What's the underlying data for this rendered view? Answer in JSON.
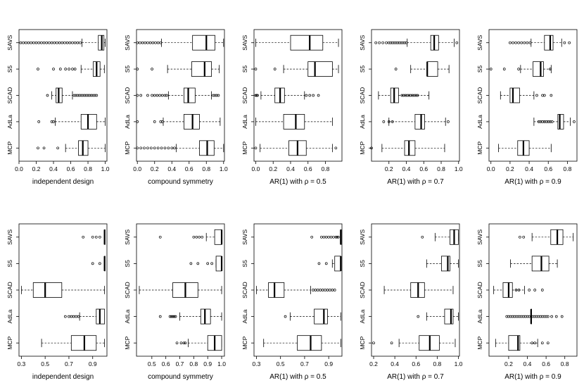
{
  "figure": {
    "description": "Boxplots of five variable-selection methods under ten correlation settings"
  },
  "chart_data": [
    {
      "type": "boxplot",
      "xlabel": "independent design",
      "xlim": [
        0,
        1.02
      ],
      "ticks": [
        0.0,
        0.2,
        0.4,
        0.6,
        0.8,
        1.0
      ],
      "tick_labels": [
        "0.0",
        "0.2",
        "0.4",
        "0.6",
        "0.8",
        "1.0"
      ],
      "categories": [
        "SAVS",
        "S5",
        "SCAD",
        "AdLa",
        "MCP"
      ],
      "boxes": [
        {
          "q1": 0.92,
          "median": 0.96,
          "q3": 0.985,
          "wlo": 0.73,
          "whi": 1.0,
          "out": [
            0.02,
            0.05,
            0.08,
            0.11,
            0.14,
            0.17,
            0.2,
            0.23,
            0.26,
            0.29,
            0.32,
            0.35,
            0.38,
            0.41,
            0.44,
            0.47,
            0.5,
            0.53,
            0.56,
            0.59,
            0.62,
            0.65,
            0.68,
            0.71
          ]
        },
        {
          "q1": 0.86,
          "median": 0.9,
          "q3": 0.94,
          "wlo": 0.72,
          "whi": 0.99,
          "out": [
            0.22,
            0.4,
            0.48,
            0.54,
            0.58,
            0.62,
            0.65
          ]
        },
        {
          "q1": 0.43,
          "median": 0.46,
          "q3": 0.5,
          "wlo": 0.38,
          "whi": 0.62,
          "out": [
            0.33,
            0.64,
            0.66,
            0.68,
            0.7,
            0.72,
            0.74,
            0.76,
            0.78,
            0.8,
            0.82,
            0.84,
            0.86,
            0.88,
            0.9
          ]
        },
        {
          "q1": 0.72,
          "median": 0.8,
          "q3": 0.9,
          "wlo": 0.42,
          "whi": 1.0,
          "out": [
            0.23,
            0.38,
            0.4
          ]
        },
        {
          "q1": 0.69,
          "median": 0.74,
          "q3": 0.8,
          "wlo": 0.54,
          "whi": 1.0,
          "out": [
            0.22,
            0.29,
            0.45
          ]
        }
      ]
    },
    {
      "type": "boxplot",
      "xlabel": "compound symmetry",
      "xlim": [
        -0.01,
        1.01
      ],
      "ticks": [
        0.0,
        0.2,
        0.4,
        0.6,
        0.8,
        1.0
      ],
      "tick_labels": [
        "0.0",
        "0.2",
        "0.4",
        "0.6",
        "0.8",
        "1.0"
      ],
      "categories": [
        "SAVS",
        "S5",
        "SCAD",
        "AdLa",
        "MCP"
      ],
      "boxes": [
        {
          "q1": 0.64,
          "median": 0.8,
          "q3": 0.9,
          "wlo": 0.28,
          "whi": 1.0,
          "out": [
            0.0,
            0.03,
            0.06,
            0.09,
            0.12,
            0.15,
            0.18,
            0.21,
            0.24,
            0.27
          ]
        },
        {
          "q1": 0.63,
          "median": 0.78,
          "q3": 0.86,
          "wlo": 0.35,
          "whi": 0.95,
          "out": [
            0.0,
            0.17
          ]
        },
        {
          "q1": 0.54,
          "median": 0.59,
          "q3": 0.67,
          "wlo": 0.36,
          "whi": 0.86,
          "out": [
            0.0,
            0.04,
            0.12,
            0.17,
            0.2,
            0.23,
            0.26,
            0.29,
            0.32,
            0.34,
            0.88,
            0.9,
            0.92,
            0.94
          ]
        },
        {
          "q1": 0.54,
          "median": 0.64,
          "q3": 0.72,
          "wlo": 0.3,
          "whi": 0.96,
          "out": [
            0.0,
            0.2,
            0.27,
            0.29
          ]
        },
        {
          "q1": 0.72,
          "median": 0.81,
          "q3": 0.89,
          "wlo": 0.45,
          "whi": 1.0,
          "out": [
            0.0,
            0.04,
            0.08,
            0.12,
            0.16,
            0.2,
            0.24,
            0.28,
            0.32,
            0.36,
            0.4,
            0.43
          ]
        }
      ]
    },
    {
      "type": "boxplot",
      "xlabel": "AR(1) with ρ = 0.5",
      "xlim": [
        -0.02,
        0.99
      ],
      "ticks": [
        0.0,
        0.2,
        0.4,
        0.6,
        0.8
      ],
      "tick_labels": [
        "0.0",
        "0.2",
        "0.4",
        "0.6",
        "0.8"
      ],
      "categories": [
        "SAVS",
        "S5",
        "SCAD",
        "AdLa",
        "MCP"
      ],
      "boxes": [
        {
          "q1": 0.4,
          "median": 0.62,
          "q3": 0.77,
          "wlo": 0.0,
          "whi": 0.95,
          "out": []
        },
        {
          "q1": 0.6,
          "median": 0.68,
          "q3": 0.88,
          "wlo": 0.32,
          "whi": 0.95,
          "out": [
            0.0,
            0.22
          ]
        },
        {
          "q1": 0.22,
          "median": 0.28,
          "q3": 0.33,
          "wlo": 0.06,
          "whi": 0.56,
          "out": [
            0.0,
            0.01,
            0.02,
            0.58,
            0.62,
            0.66,
            0.72
          ]
        },
        {
          "q1": 0.32,
          "median": 0.46,
          "q3": 0.56,
          "wlo": 0.0,
          "whi": 0.88,
          "out": []
        },
        {
          "q1": 0.38,
          "median": 0.48,
          "q3": 0.58,
          "wlo": 0.05,
          "whi": 0.88,
          "out": [
            0.0,
            0.92
          ]
        }
      ]
    },
    {
      "type": "boxplot",
      "xlabel": "AR(1) with ρ = 0.7",
      "xlim": [
        0.0,
        1.01
      ],
      "ticks": [
        0.2,
        0.4,
        0.6,
        0.8,
        1.0
      ],
      "tick_labels": [
        "0.2",
        "0.4",
        "0.6",
        "0.8",
        "1.0"
      ],
      "categories": [
        "SAVS",
        "S5",
        "SCAD",
        "AdLa",
        "MCP"
      ],
      "boxes": [
        {
          "q1": 0.68,
          "median": 0.72,
          "q3": 0.77,
          "wlo": 0.41,
          "whi": 0.95,
          "out": [
            0.05,
            0.09,
            0.13,
            0.17,
            0.2,
            0.22,
            0.24,
            0.26,
            0.28,
            0.3,
            0.32,
            0.34,
            0.36,
            0.38,
            0.4,
            0.98
          ]
        },
        {
          "q1": 0.64,
          "median": 0.64,
          "q3": 0.76,
          "wlo": 0.45,
          "whi": 0.89,
          "out": [
            0.28
          ]
        },
        {
          "q1": 0.22,
          "median": 0.26,
          "q3": 0.31,
          "wlo": 0.08,
          "whi": 0.66,
          "out": [
            0.35,
            0.37,
            0.39,
            0.41,
            0.43,
            0.45,
            0.47,
            0.49,
            0.51,
            0.53
          ]
        },
        {
          "q1": 0.5,
          "median": 0.57,
          "q3": 0.61,
          "wlo": 0.2,
          "whi": 0.85,
          "out": [
            0.14,
            0.2,
            0.24,
            0.88
          ]
        },
        {
          "q1": 0.38,
          "median": 0.43,
          "q3": 0.5,
          "wlo": 0.12,
          "whi": 0.84,
          "out": [
            0.0
          ]
        }
      ]
    },
    {
      "type": "boxplot",
      "xlabel": "AR(1) with ρ = 0.9",
      "xlim": [
        -0.02,
        0.9
      ],
      "ticks": [
        0.0,
        0.2,
        0.4,
        0.6,
        0.8
      ],
      "tick_labels": [
        "0.0",
        "0.2",
        "0.4",
        "0.6",
        "0.8"
      ],
      "categories": [
        "SAVS",
        "S5",
        "SCAD",
        "AdLa",
        "MCP"
      ],
      "boxes": [
        {
          "q1": 0.56,
          "median": 0.62,
          "q3": 0.65,
          "wlo": 0.42,
          "whi": 0.74,
          "out": [
            0.2,
            0.23,
            0.26,
            0.29,
            0.32,
            0.35,
            0.38,
            0.41,
            0.77,
            0.82
          ]
        },
        {
          "q1": 0.44,
          "median": 0.52,
          "q3": 0.55,
          "wlo": 0.31,
          "whi": 0.63,
          "out": [
            0.0,
            0.14,
            0.29,
            0.62
          ]
        },
        {
          "q1": 0.2,
          "median": 0.23,
          "q3": 0.3,
          "wlo": 0.1,
          "whi": 0.45,
          "out": [
            0.48,
            0.54,
            0.56,
            0.63
          ]
        },
        {
          "q1": 0.7,
          "median": 0.72,
          "q3": 0.76,
          "wlo": 0.45,
          "whi": 0.83,
          "out": [
            0.5,
            0.52,
            0.54,
            0.56,
            0.58,
            0.6,
            0.62,
            0.64,
            0.87
          ]
        },
        {
          "q1": 0.28,
          "median": 0.34,
          "q3": 0.4,
          "wlo": 0.08,
          "whi": 0.63,
          "out": []
        }
      ]
    },
    {
      "type": "boxplot",
      "xlabel": "independent design",
      "xlim": [
        0.28,
        1.02
      ],
      "ticks": [
        0.3,
        0.5,
        0.7,
        0.9
      ],
      "tick_labels": [
        "0.3",
        "0.5",
        "0.7",
        "0.9"
      ],
      "categories": [
        "SAVS",
        "S5",
        "SCAD",
        "AdLa",
        "MCP"
      ],
      "boxes": [
        {
          "q1": 1.0,
          "median": 1.0,
          "q3": 1.0,
          "wlo": 1.0,
          "whi": 1.0,
          "out": [
            0.82,
            0.9,
            0.93,
            0.96
          ]
        },
        {
          "q1": 1.0,
          "median": 1.0,
          "q3": 1.0,
          "wlo": 1.0,
          "whi": 1.0,
          "out": [
            0.9,
            0.96
          ]
        },
        {
          "q1": 0.4,
          "median": 0.5,
          "q3": 0.64,
          "wlo": 0.3,
          "whi": 1.0,
          "out": []
        },
        {
          "q1": 0.93,
          "median": 0.96,
          "q3": 1.0,
          "wlo": 0.79,
          "whi": 1.0,
          "out": [
            0.67,
            0.7,
            0.72,
            0.74,
            0.76,
            0.78
          ]
        },
        {
          "q1": 0.72,
          "median": 0.83,
          "q3": 0.93,
          "wlo": 0.47,
          "whi": 1.0,
          "out": []
        }
      ]
    },
    {
      "type": "boxplot",
      "xlabel": "compound symmetry",
      "xlim": [
        0.39,
        1.02
      ],
      "ticks": [
        0.5,
        0.6,
        0.7,
        0.8,
        0.9,
        1.0
      ],
      "tick_labels": [
        "0.5",
        "0.6",
        "0.7",
        "0.8",
        "0.9",
        "1.0"
      ],
      "categories": [
        "SAVS",
        "S5",
        "SCAD",
        "AdLa",
        "MCP"
      ],
      "boxes": [
        {
          "q1": 0.95,
          "median": 1.0,
          "q3": 1.0,
          "wlo": 0.89,
          "whi": 1.0,
          "out": [
            0.56,
            0.8,
            0.82,
            0.84,
            0.86
          ]
        },
        {
          "q1": 0.96,
          "median": 1.0,
          "q3": 1.0,
          "wlo": 0.96,
          "whi": 1.0,
          "out": [
            0.78,
            0.83,
            0.9,
            0.93
          ]
        },
        {
          "q1": 0.65,
          "median": 0.74,
          "q3": 0.83,
          "wlo": 0.41,
          "whi": 1.0,
          "out": []
        },
        {
          "q1": 0.85,
          "median": 0.88,
          "q3": 0.92,
          "wlo": 0.7,
          "whi": 1.0,
          "out": [
            0.56,
            0.63,
            0.64,
            0.65,
            0.66,
            0.67
          ]
        },
        {
          "q1": 0.9,
          "median": 0.95,
          "q3": 1.0,
          "wlo": 0.76,
          "whi": 1.0,
          "out": [
            0.68,
            0.71,
            0.73,
            0.74
          ]
        }
      ]
    },
    {
      "type": "boxplot",
      "xlabel": "AR(1) with ρ = 0.5",
      "xlim": [
        0.28,
        1.01
      ],
      "ticks": [
        0.3,
        0.5,
        0.7,
        0.9
      ],
      "tick_labels": [
        "0.3",
        "0.5",
        "0.7",
        "0.9"
      ],
      "categories": [
        "SAVS",
        "S5",
        "SCAD",
        "AdLa",
        "MCP"
      ],
      "boxes": [
        {
          "q1": 1.0,
          "median": 1.0,
          "q3": 1.0,
          "wlo": 1.0,
          "whi": 1.0,
          "out": [
            0.76,
            0.84,
            0.86,
            0.88,
            0.9,
            0.92,
            0.94,
            0.96,
            0.97,
            0.98
          ]
        },
        {
          "q1": 0.95,
          "median": 1.0,
          "q3": 1.0,
          "wlo": 0.93,
          "whi": 1.0,
          "out": [
            0.82,
            0.88
          ]
        },
        {
          "q1": 0.4,
          "median": 0.45,
          "q3": 0.53,
          "wlo": 0.3,
          "whi": 0.75,
          "out": [
            0.77,
            0.79,
            0.81,
            0.83,
            0.85,
            0.87,
            0.89,
            0.91,
            0.93,
            0.95
          ]
        },
        {
          "q1": 0.78,
          "median": 0.86,
          "q3": 0.89,
          "wlo": 0.58,
          "whi": 1.0,
          "out": [
            0.54
          ]
        },
        {
          "q1": 0.64,
          "median": 0.75,
          "q3": 0.84,
          "wlo": 0.36,
          "whi": 1.0,
          "out": []
        }
      ]
    },
    {
      "type": "boxplot",
      "xlabel": "AR(1) with ρ = 0.7",
      "xlim": [
        0.18,
        1.01
      ],
      "ticks": [
        0.2,
        0.4,
        0.6,
        0.8,
        1.0
      ],
      "tick_labels": [
        "0.2",
        "0.4",
        "0.6",
        "0.8",
        "1.0"
      ],
      "categories": [
        "SAVS",
        "S5",
        "SCAD",
        "AdLa",
        "MCP"
      ],
      "boxes": [
        {
          "q1": 0.92,
          "median": 0.96,
          "q3": 1.0,
          "wlo": 0.78,
          "whi": 1.0,
          "out": [
            0.66
          ]
        },
        {
          "q1": 0.84,
          "median": 0.9,
          "q3": 0.92,
          "wlo": 0.7,
          "whi": 1.0,
          "out": []
        },
        {
          "q1": 0.55,
          "median": 0.62,
          "q3": 0.68,
          "wlo": 0.3,
          "whi": 0.95,
          "out": []
        },
        {
          "q1": 0.87,
          "median": 0.93,
          "q3": 0.95,
          "wlo": 0.7,
          "whi": 1.0,
          "out": [
            0.62
          ]
        },
        {
          "q1": 0.63,
          "median": 0.73,
          "q3": 0.82,
          "wlo": 0.44,
          "whi": 0.97,
          "out": [
            0.2,
            0.37
          ]
        }
      ]
    },
    {
      "type": "boxplot",
      "xlabel": "AR(1) with ρ = 0.9",
      "xlim": [
        -0.01,
        0.93
      ],
      "ticks": [
        0.2,
        0.4,
        0.6,
        0.8
      ],
      "tick_labels": [
        "0.2",
        "0.4",
        "0.6",
        "0.8"
      ],
      "categories": [
        "SAVS",
        "S5",
        "SCAD",
        "AdLa",
        "MCP"
      ],
      "boxes": [
        {
          "q1": 0.65,
          "median": 0.72,
          "q3": 0.78,
          "wlo": 0.45,
          "whi": 0.89,
          "out": [
            0.32,
            0.36
          ]
        },
        {
          "q1": 0.45,
          "median": 0.55,
          "q3": 0.63,
          "wlo": 0.22,
          "whi": 0.72,
          "out": []
        },
        {
          "q1": 0.14,
          "median": 0.2,
          "q3": 0.24,
          "wlo": 0.04,
          "whi": 0.37,
          "out": [
            0.28,
            0.31,
            0.42,
            0.48,
            0.56
          ]
        },
        {
          "q1": 0.44,
          "median": 0.44,
          "q3": 0.44,
          "wlo": 0.44,
          "whi": 0.44,
          "out": [
            0.18,
            0.2,
            0.22,
            0.24,
            0.26,
            0.28,
            0.3,
            0.32,
            0.34,
            0.36,
            0.38,
            0.4,
            0.42,
            0.46,
            0.48,
            0.5,
            0.52,
            0.54,
            0.56,
            0.58,
            0.6,
            0.62,
            0.66,
            0.71,
            0.77
          ]
        },
        {
          "q1": 0.2,
          "median": 0.3,
          "q3": 0.32,
          "wlo": 0.06,
          "whi": 0.51,
          "out": [
            0.45,
            0.48,
            0.56,
            0.62
          ]
        }
      ]
    }
  ]
}
